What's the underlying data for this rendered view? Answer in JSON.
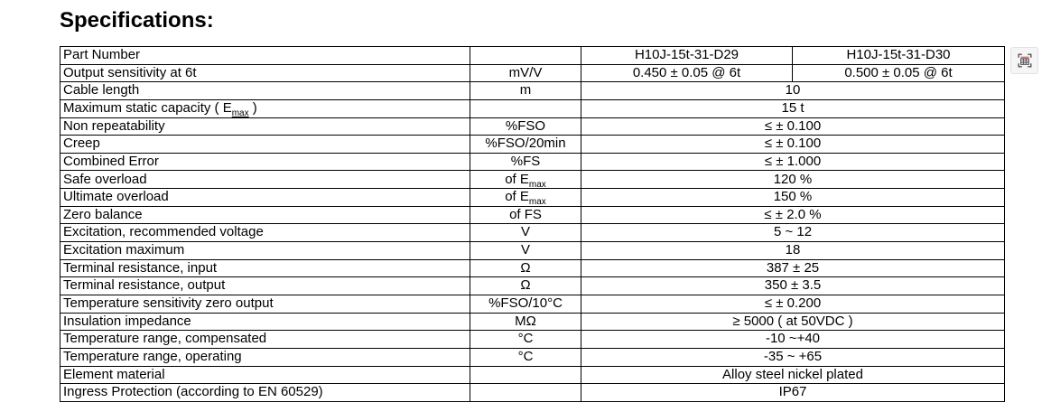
{
  "heading": "Specifications:",
  "table": {
    "rows": [
      {
        "label": "Part Number",
        "unit": "",
        "values": [
          "H10J-15t-31-D29",
          "H10J-15t-31-D30"
        ]
      },
      {
        "label": "Output sensitivity at 6t",
        "unit": "mV/V",
        "values": [
          "0.450 ± 0.05 @ 6t",
          "0.500 ± 0.05 @ 6t"
        ]
      },
      {
        "label": "Cable length",
        "unit": "m",
        "values": [
          "10"
        ]
      },
      {
        "label": "Maximum static capacity ( E_{max} )",
        "unit": "",
        "values": [
          "15 t"
        ]
      },
      {
        "label": "Non repeatability",
        "unit": "%FSO",
        "values": [
          "≤ ± 0.100"
        ]
      },
      {
        "label": "Creep",
        "unit": "%FSO/20min",
        "values": [
          "≤ ± 0.100"
        ]
      },
      {
        "label": "Combined Error",
        "unit": "%FS",
        "values": [
          "≤ ± 1.000"
        ]
      },
      {
        "label": "Safe overload",
        "unit": "of E_{max}",
        "values": [
          "120 %"
        ]
      },
      {
        "label": "Ultimate overload",
        "unit": "of E_{max}",
        "values": [
          "150 %"
        ]
      },
      {
        "label": "Zero balance",
        "unit": "of FS",
        "values": [
          "≤ ± 2.0 %"
        ]
      },
      {
        "label": "Excitation, recommended voltage",
        "unit": "V",
        "values": [
          "5 ~ 12"
        ]
      },
      {
        "label": "Excitation maximum",
        "unit": "V",
        "values": [
          "18"
        ]
      },
      {
        "label": "Terminal resistance, input",
        "unit": "Ω",
        "values": [
          "387 ± 25"
        ]
      },
      {
        "label": "Terminal resistance, output",
        "unit": "Ω",
        "values": [
          "350 ± 3.5"
        ]
      },
      {
        "label": "Temperature sensitivity zero output",
        "unit": "%FSO/10°C",
        "values": [
          "≤ ± 0.200"
        ]
      },
      {
        "label": "Insulation impedance",
        "unit": "MΩ",
        "values": [
          "≥ 5000 ( at 50VDC )"
        ]
      },
      {
        "label": "Temperature range, compensated",
        "unit": "°C",
        "values": [
          "-10 ~+40"
        ]
      },
      {
        "label": "Temperature range, operating",
        "unit": "°C",
        "values": [
          "-35 ~ +65"
        ]
      },
      {
        "label": "Element material",
        "unit": "",
        "values": [
          "Alloy steel nickel plated"
        ]
      },
      {
        "label": "Ingress Protection (according to EN 60529)",
        "unit": "",
        "values": [
          "IP67"
        ]
      }
    ]
  },
  "colors": {
    "table_border": "#000000",
    "icon_gray": "#5f6368",
    "icon_red": "#e8756b"
  }
}
